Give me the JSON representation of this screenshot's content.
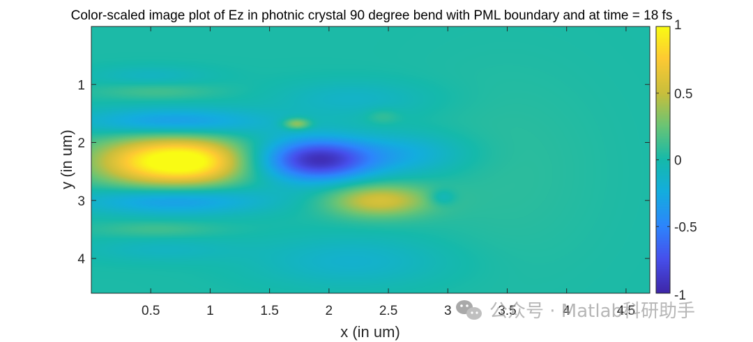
{
  "chart_data": {
    "type": "heatmap",
    "title": "Color-scaled image plot of Ez in photnic crystal 90 degree bend with PML boundary and at time = 18 fs",
    "xlabel": "x (in um)",
    "ylabel": "y (in um)",
    "xlim": [
      0,
      4.7
    ],
    "ylim": [
      0,
      4.6
    ],
    "y_direction": "reverse",
    "x_ticks": [
      0.5,
      1,
      1.5,
      2,
      2.5,
      3,
      3.5,
      4,
      4.5
    ],
    "x_tick_labels": [
      "0.5",
      "1",
      "1.5",
      "2",
      "2.5",
      "3",
      "3.5",
      "4",
      "4.5"
    ],
    "y_ticks": [
      1,
      2,
      3,
      4
    ],
    "y_tick_labels": [
      "1",
      "2",
      "3",
      "4"
    ],
    "colorbar": {
      "limits": [
        -1,
        1
      ],
      "ticks": [
        -1,
        -0.5,
        0,
        0.5,
        1
      ],
      "tick_labels": [
        "-1",
        "-0.5",
        "0",
        "0.5",
        "1"
      ],
      "colormap": "parula"
    },
    "field_features": [
      {
        "name": "bright-lobe",
        "x": 0.65,
        "y": 2.33,
        "sx": 0.42,
        "sy": 0.3,
        "value": 1.05
      },
      {
        "name": "bright-lobe-right",
        "x": 0.95,
        "y": 2.33,
        "sx": 0.22,
        "sy": 0.25,
        "value": 0.18
      },
      {
        "name": "upper-blue-band",
        "x": 0.7,
        "y": 1.65,
        "sx": 0.55,
        "sy": 0.17,
        "value": -0.4
      },
      {
        "name": "lower-blue-band",
        "x": 0.7,
        "y": 3.0,
        "sx": 0.55,
        "sy": 0.17,
        "value": -0.4
      },
      {
        "name": "upper-cyan-band",
        "x": 0.5,
        "y": 0.85,
        "sx": 0.35,
        "sy": 0.12,
        "value": -0.12
      },
      {
        "name": "lower-cyan-band",
        "x": 0.6,
        "y": 3.85,
        "sx": 0.45,
        "sy": 0.15,
        "value": -0.12
      },
      {
        "name": "top-green-band",
        "x": 0.55,
        "y": 1.12,
        "sx": 0.35,
        "sy": 0.1,
        "value": 0.12
      },
      {
        "name": "bottom-green-band",
        "x": 0.55,
        "y": 3.5,
        "sx": 0.35,
        "sy": 0.1,
        "value": 0.12
      },
      {
        "name": "central-dark-blue",
        "x": 1.9,
        "y": 2.3,
        "sx": 0.33,
        "sy": 0.26,
        "value": -0.95
      },
      {
        "name": "green-spot-upper",
        "x": 1.73,
        "y": 1.68,
        "sx": 0.08,
        "sy": 0.07,
        "value": 0.45
      },
      {
        "name": "green-lobe-lower-right",
        "x": 2.42,
        "y": 3.0,
        "sx": 0.3,
        "sy": 0.2,
        "value": 0.55
      },
      {
        "name": "blue-mid-right",
        "x": 2.65,
        "y": 2.2,
        "sx": 0.35,
        "sy": 0.25,
        "value": -0.25
      },
      {
        "name": "faint-blue-upper",
        "x": 2.2,
        "y": 1.25,
        "sx": 0.45,
        "sy": 0.22,
        "value": -0.15
      },
      {
        "name": "faint-blue-lower",
        "x": 2.2,
        "y": 4.05,
        "sx": 0.55,
        "sy": 0.3,
        "value": -0.18
      },
      {
        "name": "small-blue-spot",
        "x": 2.95,
        "y": 2.95,
        "sx": 0.08,
        "sy": 0.1,
        "value": -0.2
      },
      {
        "name": "faint-green-spot",
        "x": 2.45,
        "y": 1.55,
        "sx": 0.1,
        "sy": 0.1,
        "value": 0.12
      },
      {
        "name": "faint-gradient-right",
        "x": 3.5,
        "y": 2.5,
        "sx": 0.55,
        "sy": 1.2,
        "value": 0.05
      }
    ]
  },
  "watermark": {
    "text": "公众号 · Matlab科研助手",
    "icon": "wechat-icon"
  }
}
